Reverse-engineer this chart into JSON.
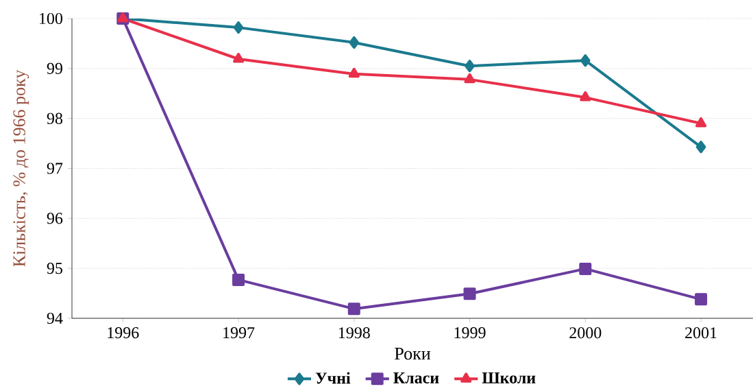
{
  "chart_data": {
    "type": "line",
    "xlabel": "Роки",
    "ylabel": "Кількість, % до 1966 року",
    "categories": [
      "1996",
      "1997",
      "1998",
      "1999",
      "2000",
      "2001"
    ],
    "series": [
      {
        "name": "Учні",
        "color": "#1b7a8e",
        "marker": "diamond",
        "values": [
          100,
          99.82,
          99.52,
          99.05,
          99.16,
          97.43
        ]
      },
      {
        "name": "Класи",
        "color": "#6a3d9e",
        "marker": "square",
        "values": [
          100,
          94.77,
          94.19,
          94.49,
          94.99,
          94.38
        ]
      },
      {
        "name": "Школи",
        "color": "#e8304a",
        "marker": "triangle",
        "values": [
          100,
          99.19,
          98.89,
          98.78,
          98.42,
          97.9
        ]
      }
    ],
    "ylim": [
      94,
      100
    ],
    "yticks": [
      94,
      95,
      96,
      97,
      98,
      99,
      100
    ],
    "grid": "y",
    "legend": "bottom"
  }
}
